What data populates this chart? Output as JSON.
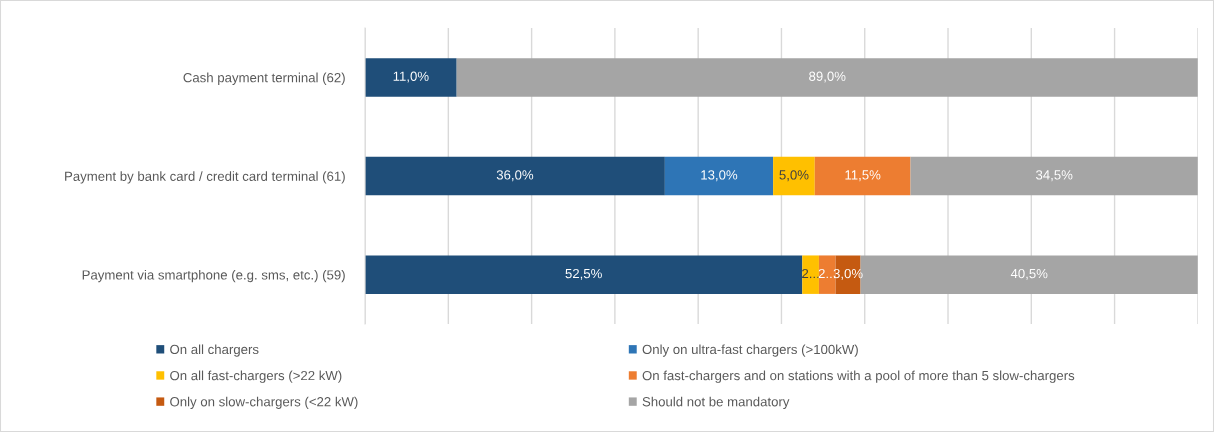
{
  "chart_data": {
    "type": "bar",
    "orientation": "horizontal",
    "stacked": true,
    "categories": [
      "Cash payment terminal (62)",
      "Payment by bank card / credit card terminal (61)",
      "Payment via smartphone (e.g. sms, etc.) (59)"
    ],
    "series": [
      {
        "name": "On all chargers",
        "color": "#1f4e79",
        "values": [
          11.0,
          36.0,
          52.5
        ],
        "value_labels": [
          "11,0%",
          "36,0%",
          "52,5%"
        ]
      },
      {
        "name": "Only on ultra-fast chargers (>100kW)",
        "color": "#2e75b6",
        "values": [
          null,
          13.0,
          null
        ],
        "value_labels": [
          null,
          "13,0%",
          null
        ]
      },
      {
        "name": "On all fast-chargers (>22 kW)",
        "color": "#ffc000",
        "values": [
          null,
          5.0,
          2.0
        ],
        "value_labels": [
          null,
          "5,0%",
          "2..."
        ]
      },
      {
        "name": "On fast-chargers and on stations with a pool of more than 5 slow-chargers",
        "color": "#ed7d31",
        "values": [
          null,
          11.5,
          2.0
        ],
        "value_labels": [
          null,
          "11,5%",
          "2..."
        ]
      },
      {
        "name": "Only on slow-chargers (<22 kW)",
        "color": "#c55a11",
        "values": [
          null,
          null,
          3.0
        ],
        "value_labels": [
          null,
          null,
          "3,0%"
        ]
      },
      {
        "name": "Should not be mandatory",
        "color": "#a5a5a5",
        "values": [
          89.0,
          34.5,
          40.5
        ],
        "value_labels": [
          "89,0%",
          "34,5%",
          "40,5%"
        ]
      }
    ],
    "xlim": [
      0,
      100
    ],
    "xticks": [
      {
        "value": 0,
        "label": null
      },
      {
        "value": 10,
        "label": null
      },
      {
        "value": 20,
        "label": null
      },
      {
        "value": 30,
        "label": null
      },
      {
        "value": 40,
        "label": null
      },
      {
        "value": 50,
        "label": null
      },
      {
        "value": 60,
        "label": null
      },
      {
        "value": 70,
        "label": null
      },
      {
        "value": 80,
        "label": null
      },
      {
        "value": 90,
        "label": null
      },
      {
        "value": 100,
        "label": null
      }
    ],
    "grid": "x",
    "legend": "bottom",
    "tick_labels": "y"
  }
}
